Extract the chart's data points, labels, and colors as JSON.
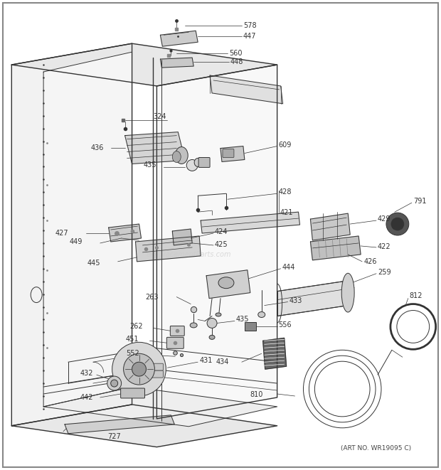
{
  "art_no": "(ART NO. WR19095 C)",
  "watermark": "eReplacementParts.com",
  "bg_color": "#ffffff",
  "line_color": "#333333",
  "label_fontsize": 7.0,
  "figsize": [
    6.2,
    6.61
  ],
  "dpi": 100
}
